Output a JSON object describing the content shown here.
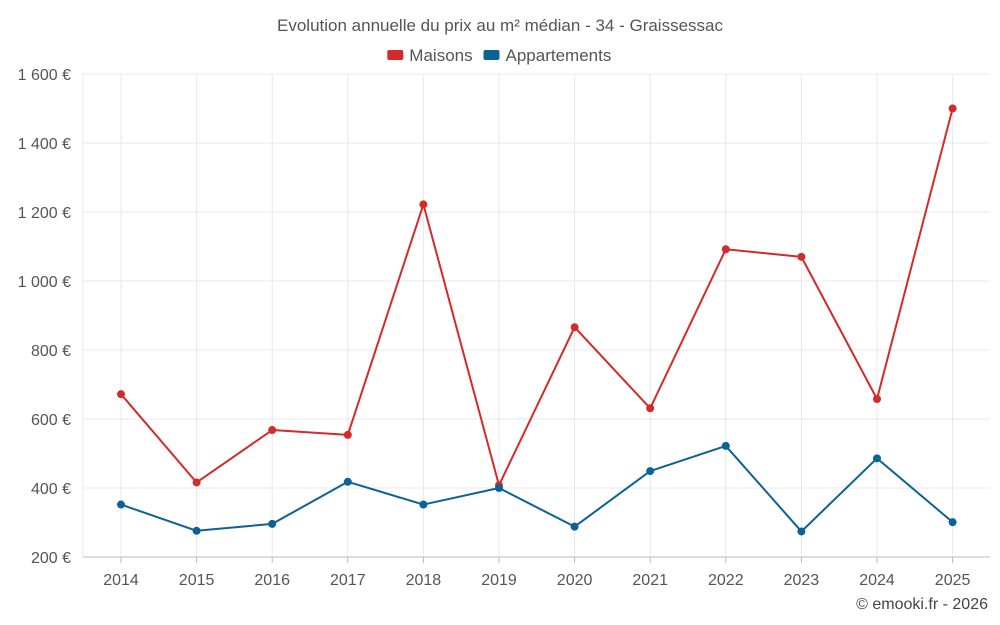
{
  "chart_data": {
    "type": "line",
    "title": "Evolution annuelle du prix au m² médian - 34 - Graissessac",
    "categories": [
      "2014",
      "2015",
      "2016",
      "2017",
      "2018",
      "2019",
      "2020",
      "2021",
      "2022",
      "2023",
      "2024",
      "2025"
    ],
    "series": [
      {
        "name": "Maisons",
        "color": "#d42a2a",
        "values": [
          672,
          416,
          568,
          554,
          1222,
          408,
          866,
          631,
          1092,
          1070,
          658,
          1500
        ]
      },
      {
        "name": "Appartements",
        "color": "#0b6296",
        "values": [
          352,
          276,
          296,
          418,
          352,
          400,
          288,
          449,
          522,
          274,
          486,
          301
        ]
      }
    ],
    "ylim": [
      200,
      1600
    ],
    "yticks": [
      200,
      400,
      600,
      800,
      1000,
      1200,
      1400,
      1600
    ],
    "ytick_labels": [
      "200 €",
      "400 €",
      "600 €",
      "800 €",
      "1 000 €",
      "1 200 €",
      "1 400 €",
      "1 600 €"
    ],
    "grid": true,
    "legend_position": "top-center",
    "xlabel": "",
    "ylabel": ""
  },
  "credit": "© emooki.fr - 2026"
}
